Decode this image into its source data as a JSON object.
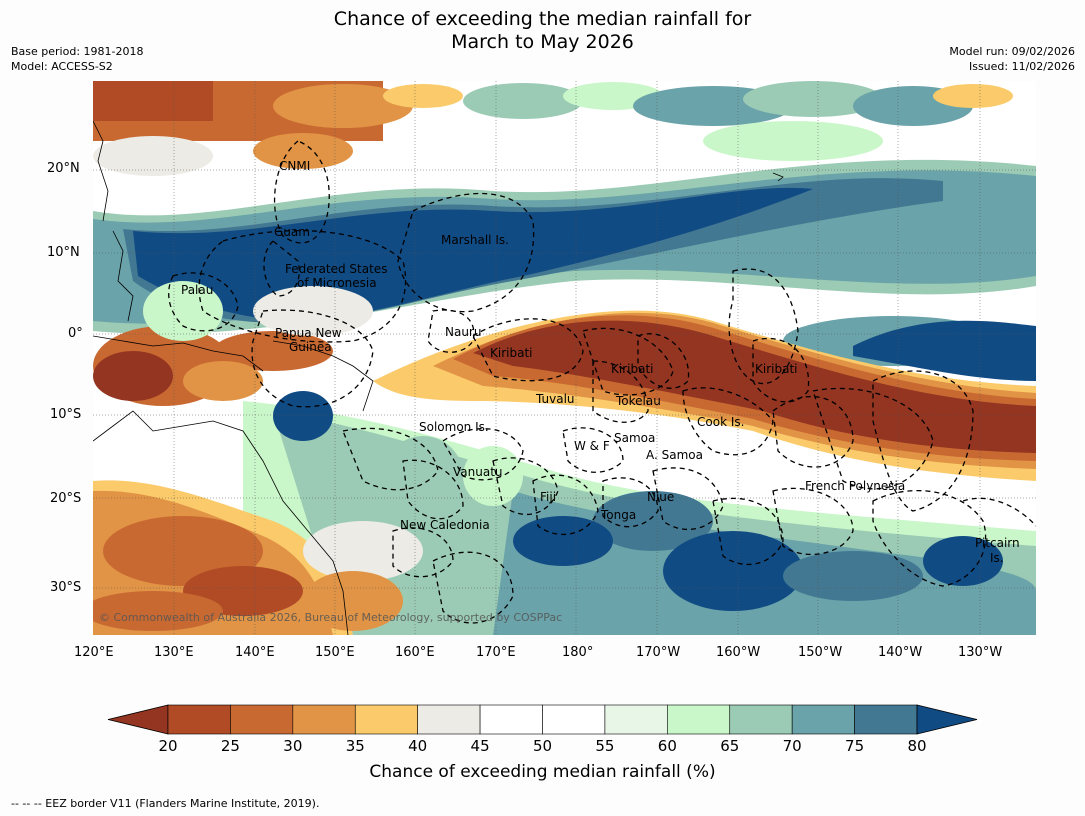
{
  "header": {
    "title_line1": "Chance of exceeding the median rainfall for",
    "title_line2": "March to May 2026",
    "base_period": "Base period: 1981-2018",
    "model": "Model: ACCESS-S2",
    "model_run": "Model run: 09/02/2026",
    "issued": "Issued: 11/02/2026"
  },
  "map": {
    "lon_labels": [
      "120°E",
      "130°E",
      "140°E",
      "150°E",
      "160°E",
      "170°E",
      "180°",
      "170°W",
      "160°W",
      "150°W",
      "140°W",
      "130°W"
    ],
    "lat_labels": [
      "20°N",
      "10°N",
      "0°",
      "10°S",
      "20°S",
      "30°S"
    ],
    "regions": {
      "cnmi": "CNMI",
      "guam": "Guam",
      "marshall": "Marshall Is.",
      "fsm_1": "Federated States",
      "fsm_2": "of Micronesia",
      "palau": "Palau",
      "png_1": "Papua New",
      "png_2": "Guinea",
      "nauru": "Nauru",
      "kiribati_w": "Kiribati",
      "kiribati_c": "Kiribati",
      "kiribati_e": "Kiribati",
      "tuvalu": "Tuvalu",
      "tokelau": "Tokelau",
      "cook": "Cook Is.",
      "solomon": "Solomon Is.",
      "samoa": "Samoa",
      "wf": "W & F",
      "asamoa": "A. Samoa",
      "vanuatu": "Vanuatu",
      "fiji": "Fiji",
      "niue": "Niue",
      "tonga": "Tonga",
      "french_polynesia": "French Polynesia",
      "new_caledonia": "New Caledonia",
      "pitcairn_1": "Pitcairn",
      "pitcairn_2": "Is."
    },
    "copyright": "© Commonwealth of Australia 2026, Bureau of Meteorology, supported by COSPPac"
  },
  "colorbar": {
    "ticks": [
      "20",
      "25",
      "30",
      "35",
      "40",
      "45",
      "50",
      "55",
      "60",
      "65",
      "70",
      "75",
      "80"
    ],
    "colors": [
      "#b14b26",
      "#c96932",
      "#e19445",
      "#fbcb6b",
      "#ecebe5",
      "#ffffff",
      "#ffffff",
      "#e8f6e8",
      "#c9f7c9",
      "#9bcbb4",
      "#6aa3a9",
      "#437893"
    ],
    "low_extend_color": "#943521",
    "high_extend_color": "#114b84",
    "title": "Chance of exceeding median rainfall (%)"
  },
  "footnote": "--  --  -- EEZ border V11 (Flanders Marine Institute, 2019)."
}
